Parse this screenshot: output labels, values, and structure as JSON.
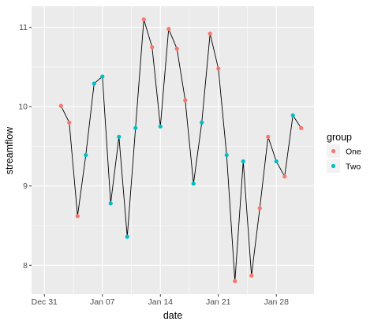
{
  "chart_data": {
    "type": "line",
    "title": "",
    "xlabel": "date",
    "ylabel": "streamflow",
    "x_tick_labels": [
      "Dec 31",
      "Jan 07",
      "Jan 14",
      "Jan 21",
      "Jan 28"
    ],
    "y_tick_labels": [
      "8",
      "9",
      "10",
      "11"
    ],
    "y_ticks": [
      8,
      9,
      10,
      11
    ],
    "ylim": [
      7.8,
      11.1
    ],
    "xlim": [
      "2021-12-30",
      "2022-01-30"
    ],
    "grid": true,
    "legend": {
      "title": "group",
      "position": "right",
      "entries": [
        {
          "label": "One",
          "color": "#F8766D"
        },
        {
          "label": "Two",
          "color": "#00BFC4"
        }
      ]
    },
    "colors": {
      "One": "#F8766D",
      "Two": "#00BFC4",
      "line": "#000000",
      "panel": "#EBEBEB",
      "grid": "#FFFFFF"
    },
    "points": [
      {
        "date": "2022-01-01",
        "value": 10.01,
        "group": "One"
      },
      {
        "date": "2022-01-02",
        "value": 9.8,
        "group": "One"
      },
      {
        "date": "2022-01-03",
        "value": 8.62,
        "group": "One"
      },
      {
        "date": "2022-01-04",
        "value": 9.39,
        "group": "Two"
      },
      {
        "date": "2022-01-05",
        "value": 10.29,
        "group": "Two"
      },
      {
        "date": "2022-01-06",
        "value": 10.38,
        "group": "Two"
      },
      {
        "date": "2022-01-07",
        "value": 8.78,
        "group": "Two"
      },
      {
        "date": "2022-01-08",
        "value": 9.62,
        "group": "Two"
      },
      {
        "date": "2022-01-09",
        "value": 8.36,
        "group": "Two"
      },
      {
        "date": "2022-01-10",
        "value": 9.73,
        "group": "Two"
      },
      {
        "date": "2022-01-11",
        "value": 11.1,
        "group": "One"
      },
      {
        "date": "2022-01-12",
        "value": 10.75,
        "group": "One"
      },
      {
        "date": "2022-01-13",
        "value": 9.75,
        "group": "Two"
      },
      {
        "date": "2022-01-14",
        "value": 10.98,
        "group": "One"
      },
      {
        "date": "2022-01-15",
        "value": 10.73,
        "group": "One"
      },
      {
        "date": "2022-01-16",
        "value": 10.08,
        "group": "One"
      },
      {
        "date": "2022-01-17",
        "value": 9.03,
        "group": "Two"
      },
      {
        "date": "2022-01-18",
        "value": 9.8,
        "group": "Two"
      },
      {
        "date": "2022-01-19",
        "value": 10.92,
        "group": "One"
      },
      {
        "date": "2022-01-20",
        "value": 10.48,
        "group": "One"
      },
      {
        "date": "2022-01-21",
        "value": 9.39,
        "group": "Two"
      },
      {
        "date": "2022-01-22",
        "value": 7.8,
        "group": "One"
      },
      {
        "date": "2022-01-23",
        "value": 9.31,
        "group": "Two"
      },
      {
        "date": "2022-01-24",
        "value": 7.87,
        "group": "One"
      },
      {
        "date": "2022-01-25",
        "value": 8.72,
        "group": "One"
      },
      {
        "date": "2022-01-26",
        "value": 9.62,
        "group": "One"
      },
      {
        "date": "2022-01-27",
        "value": 9.31,
        "group": "Two"
      },
      {
        "date": "2022-01-28",
        "value": 9.12,
        "group": "One"
      },
      {
        "date": "2022-01-29",
        "value": 9.89,
        "group": "Two"
      },
      {
        "date": "2022-01-30",
        "value": 9.73,
        "group": "One"
      }
    ]
  }
}
